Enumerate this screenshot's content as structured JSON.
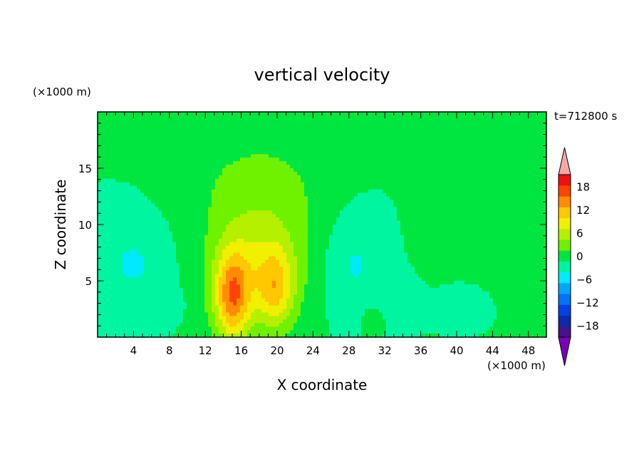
{
  "chart_data": {
    "type": "heatmap",
    "title": "vertical velocity",
    "xlabel": "X coordinate",
    "ylabel": "Z coordinate",
    "x_unit": "(×1000 m)",
    "y_unit": "(×1000 m)",
    "time_label": "t=712800 s",
    "xlim": [
      0,
      50
    ],
    "ylim": [
      0,
      20
    ],
    "x_ticks": [
      4,
      8,
      12,
      16,
      20,
      24,
      28,
      32,
      36,
      40,
      44,
      48
    ],
    "y_ticks": [
      5,
      10,
      15
    ],
    "legend": {
      "placement": "right",
      "labels": [
        "18",
        "12",
        "6",
        "0",
        "−6",
        "−12",
        "−18"
      ],
      "label_values": [
        18,
        12,
        6,
        0,
        -6,
        -12,
        -18
      ],
      "levels": [
        -21,
        -18,
        -15,
        -12,
        -9,
        -6,
        -3,
        0,
        3,
        6,
        9,
        12,
        15,
        18,
        21
      ],
      "colors": [
        "#7b00b4",
        "#46118f",
        "#0a2ba8",
        "#0040e6",
        "#0073ff",
        "#00a7ff",
        "#00e9ff",
        "#00f5a0",
        "#00e641",
        "#6ef200",
        "#b4f000",
        "#f0f000",
        "#ffc800",
        "#ff8c00",
        "#ff4400",
        "#f01010",
        "#f5a7a7"
      ]
    },
    "background_value": 0,
    "features": [
      {
        "x": 15.0,
        "z": 3.5,
        "rx": 2.0,
        "rz": 4.0,
        "amp": 14.5
      },
      {
        "x": 19.8,
        "z": 4.2,
        "rx": 2.0,
        "rz": 3.5,
        "amp": 8.8
      },
      {
        "x": 17.8,
        "z": 6.0,
        "rx": 5.0,
        "rz": 5.0,
        "amp": 5.8
      },
      {
        "x": 18.5,
        "z": 10.5,
        "rx": 7.5,
        "rz": 7.5,
        "amp": 3.2
      },
      {
        "x": 17.0,
        "z": 14.0,
        "rx": 8.0,
        "rz": 4.0,
        "amp": 1.5
      },
      {
        "x": 41.0,
        "z": 10.0,
        "rx": 4.5,
        "rz": 6.0,
        "amp": 2.3
      },
      {
        "x": 1.5,
        "z": 18.0,
        "rx": 3.5,
        "rz": 2.0,
        "amp": 1.5
      },
      {
        "x": 48.5,
        "z": 18.0,
        "rx": 1.8,
        "rz": 2.0,
        "amp": 1.5
      },
      {
        "x": 27.5,
        "z": 18.2,
        "rx": 2.5,
        "rz": 0.8,
        "amp": 1.2
      },
      {
        "x": 33.0,
        "z": 17.0,
        "rx": 2.0,
        "rz": 1.2,
        "amp": 1.0
      },
      {
        "x": 30.5,
        "z": 1.3,
        "rx": 1.0,
        "rz": 1.2,
        "amp": 3.5
      },
      {
        "x": 28.5,
        "z": 6.5,
        "rx": 3.5,
        "rz": 4.5,
        "amp": -3.6
      },
      {
        "x": 4.0,
        "z": 6.5,
        "rx": 4.0,
        "rz": 4.0,
        "amp": -3.4
      },
      {
        "x": 40.5,
        "z": 3.0,
        "rx": 2.5,
        "rz": 1.8,
        "amp": -3.2
      },
      {
        "x": 7.5,
        "z": 3.0,
        "rx": 2.0,
        "rz": 1.5,
        "amp": -1.5
      },
      {
        "x": 34.5,
        "z": 3.5,
        "rx": 2.0,
        "rz": 2.0,
        "amp": -1.2
      }
    ]
  }
}
